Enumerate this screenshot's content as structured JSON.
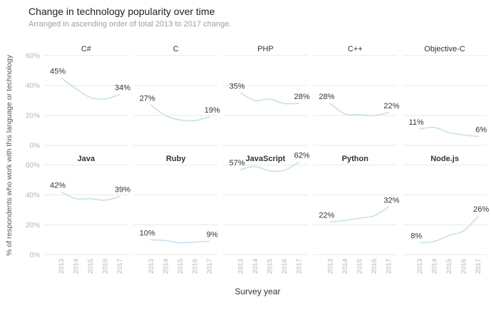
{
  "header": {
    "title": "Change in technology popularity over time",
    "subtitle": "Arranged in ascending order of total 2013 to 2017 change."
  },
  "axes": {
    "x_label": "Survey year",
    "y_label": "% of respondents who work with this language or technology"
  },
  "chart_data": {
    "type": "line",
    "layout": "small multiples, 2 rows x 5 columns",
    "title": "Change in technology popularity over time",
    "subtitle": "Arranged in ascending order of total 2013 to 2017 change.",
    "xlabel": "Survey year",
    "ylabel": "% of respondents who work with this language or technology",
    "x": [
      2013,
      2014,
      2015,
      2016,
      2017
    ],
    "x_tick_labels": [
      "2013",
      "2014",
      "2015",
      "2016",
      "2017"
    ],
    "y_tick_labels": [
      "0%",
      "20%",
      "40%",
      "60%"
    ],
    "y_ticks": [
      0,
      20,
      40,
      60
    ],
    "ylim": [
      0,
      65
    ],
    "grid": "horizontal gridlines only",
    "legend": "none",
    "colors": {
      "line": "#b9dde9",
      "gridline": "#e9e9e9",
      "tick_text": "#b5b5b5",
      "value_label_text": "#333333",
      "facet_title_text": "#333333"
    },
    "panels": [
      {
        "title": "C#",
        "row": 0,
        "col": 0,
        "bold_title": false,
        "values": [
          45,
          38,
          32,
          31,
          34
        ],
        "start_label": "45%",
        "end_label": "34%"
      },
      {
        "title": "C",
        "row": 0,
        "col": 1,
        "bold_title": false,
        "values": [
          27,
          20,
          17,
          16.5,
          19
        ],
        "start_label": "27%",
        "end_label": "19%"
      },
      {
        "title": "PHP",
        "row": 0,
        "col": 2,
        "bold_title": false,
        "values": [
          35,
          30,
          31,
          28,
          28
        ],
        "start_label": "35%",
        "end_label": "28%"
      },
      {
        "title": "C++",
        "row": 0,
        "col": 3,
        "bold_title": false,
        "values": [
          28,
          21,
          20.5,
          20,
          22
        ],
        "start_label": "28%",
        "end_label": "22%"
      },
      {
        "title": "Objective-C",
        "row": 0,
        "col": 4,
        "bold_title": false,
        "values": [
          11,
          12,
          8.5,
          7,
          6
        ],
        "start_label": "11%",
        "end_label": "6%"
      },
      {
        "title": "Java",
        "row": 1,
        "col": 0,
        "bold_title": true,
        "values": [
          42,
          37.5,
          37.5,
          36.5,
          39
        ],
        "start_label": "42%",
        "end_label": "39%"
      },
      {
        "title": "Ruby",
        "row": 1,
        "col": 1,
        "bold_title": true,
        "values": [
          10,
          9.5,
          8,
          8.5,
          9
        ],
        "start_label": "10%",
        "end_label": "9%"
      },
      {
        "title": "JavaScript",
        "row": 1,
        "col": 2,
        "bold_title": true,
        "values": [
          57,
          59,
          56,
          56.5,
          62
        ],
        "start_label": "57%",
        "end_label": "62%"
      },
      {
        "title": "Python",
        "row": 1,
        "col": 3,
        "bold_title": true,
        "values": [
          22,
          23,
          24.5,
          26,
          32
        ],
        "start_label": "22%",
        "end_label": "32%"
      },
      {
        "title": "Node.js",
        "row": 1,
        "col": 4,
        "bold_title": true,
        "values": [
          8,
          9,
          13,
          16,
          26
        ],
        "start_label": "8%",
        "end_label": "26%"
      }
    ]
  }
}
